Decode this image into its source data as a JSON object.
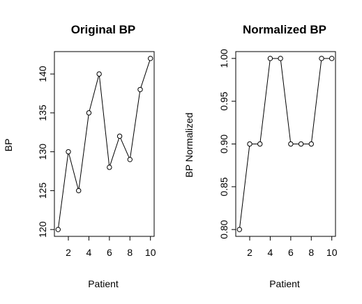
{
  "chart_data": [
    {
      "type": "line",
      "title": "Original BP",
      "xlabel": "Patient",
      "ylabel": "BP",
      "x": [
        1,
        2,
        3,
        4,
        5,
        6,
        7,
        8,
        9,
        10
      ],
      "series": [
        {
          "values": [
            120,
            130,
            125,
            135,
            140,
            128,
            132,
            129,
            138,
            142
          ]
        }
      ],
      "xticks": [
        2,
        4,
        6,
        8,
        10
      ],
      "yticks": [
        120,
        125,
        130,
        135,
        140
      ],
      "ytick_labels": [
        "120",
        "125",
        "130",
        "135",
        "140"
      ],
      "xlim": [
        0.64,
        10.36
      ],
      "ylim": [
        119.12,
        142.88
      ],
      "markers": "open-circle",
      "grid": false
    },
    {
      "type": "line",
      "title": "Normalized BP",
      "xlabel": "Patient",
      "ylabel": "BP Normalized",
      "x": [
        1,
        2,
        3,
        4,
        5,
        6,
        7,
        8,
        9,
        10
      ],
      "series": [
        {
          "values": [
            0.8,
            0.9,
            0.9,
            1.0,
            1.0,
            0.9,
            0.9,
            0.9,
            1.0,
            1.0
          ]
        }
      ],
      "xticks": [
        2,
        4,
        6,
        8,
        10
      ],
      "yticks": [
        0.8,
        0.85,
        0.9,
        0.95,
        1.0
      ],
      "ytick_labels": [
        "0.80",
        "0.85",
        "0.90",
        "0.95",
        "1.00"
      ],
      "xlim": [
        0.64,
        10.36
      ],
      "ylim": [
        0.792,
        1.008
      ],
      "markers": "open-circle",
      "grid": false
    }
  ]
}
